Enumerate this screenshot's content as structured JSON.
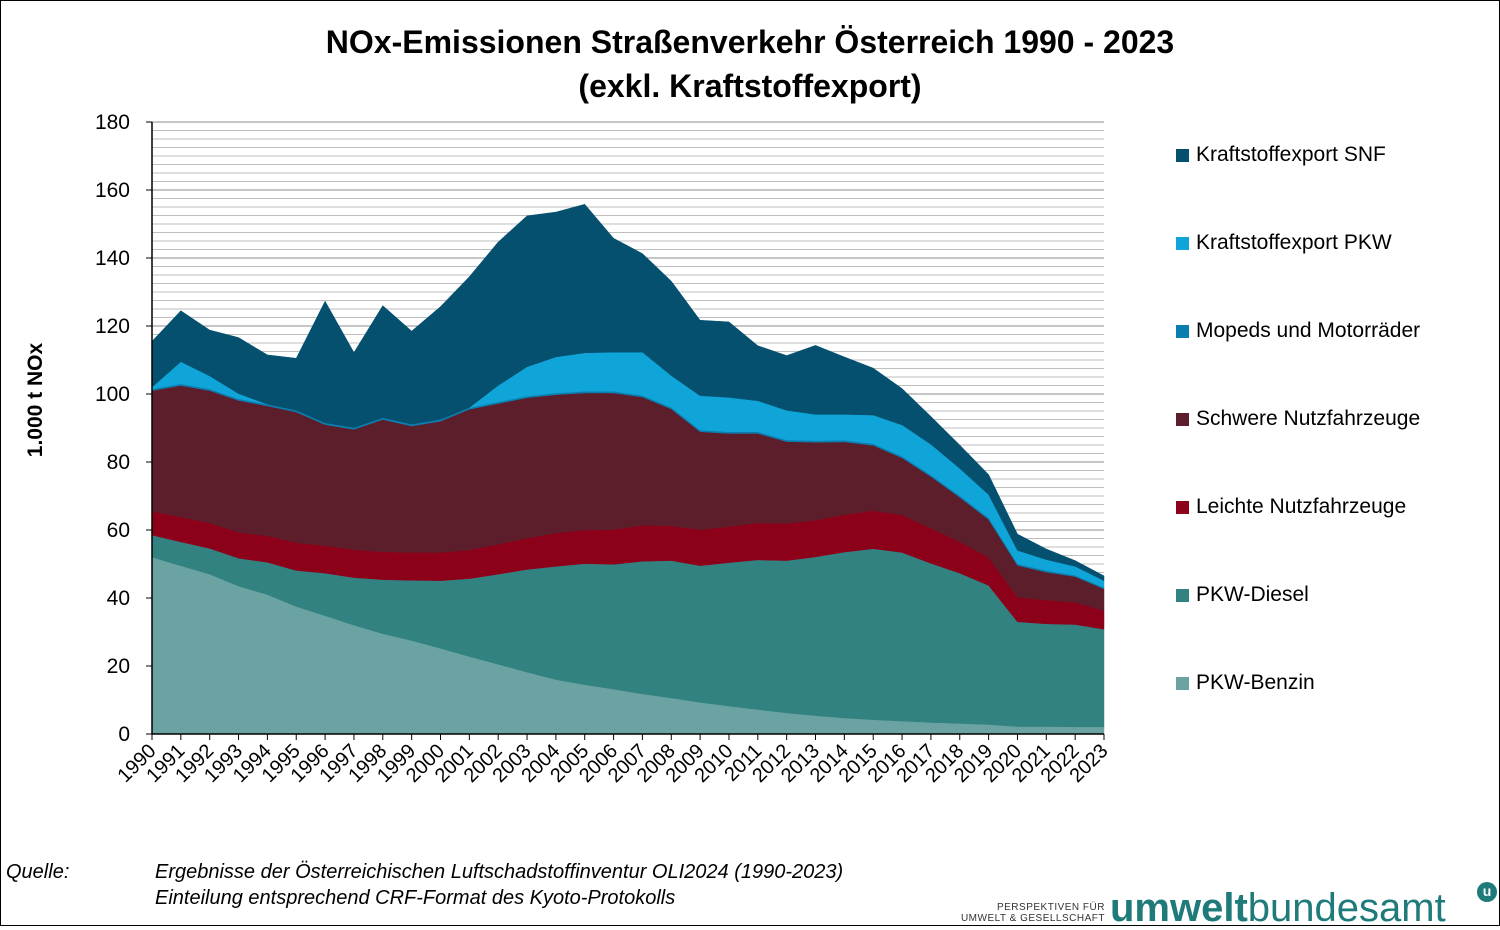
{
  "title": {
    "line1": "NOx-Emissionen Straßenverkehr Österreich 1990 - 2023",
    "line2": "(exkl. Kraftstoffexport)"
  },
  "chart_data": {
    "type": "area",
    "stacked": true,
    "title": "NOx-Emissionen Straßenverkehr Österreich 1990 - 2023 (exkl. Kraftstoffexport)",
    "xlabel": "",
    "ylabel": "1.000 t NOx",
    "ylim": [
      0,
      180
    ],
    "y_ticks": [
      0,
      20,
      40,
      60,
      80,
      100,
      120,
      140,
      160,
      180
    ],
    "grid": true,
    "legend_position": "right",
    "x": [
      "1990",
      "1991",
      "1992",
      "1993",
      "1994",
      "1995",
      "1996",
      "1997",
      "1998",
      "1999",
      "2000",
      "2001",
      "2002",
      "2003",
      "2004",
      "2005",
      "2006",
      "2007",
      "2008",
      "2009",
      "2010",
      "2011",
      "2012",
      "2013",
      "2014",
      "2015",
      "2016",
      "2017",
      "2018",
      "2019",
      "2020",
      "2021",
      "2022",
      "2023"
    ],
    "series": [
      {
        "name": "PKW-Benzin",
        "color": "#6aa3a1",
        "values": [
          52,
          49.5,
          47,
          43.5,
          41,
          37.5,
          34.8,
          32,
          29.5,
          27.5,
          25.2,
          22.8,
          20.5,
          18.2,
          16,
          14.5,
          13.2,
          11.8,
          10.6,
          9.3,
          8.2,
          7.2,
          6.2,
          5.4,
          4.7,
          4.2,
          3.8,
          3.4,
          3.1,
          2.8,
          2.2,
          2.2,
          2.1,
          2.1
        ]
      },
      {
        "name": "PKW-Diesel",
        "color": "#328282",
        "values": [
          6.5,
          7,
          7.6,
          8.2,
          9.5,
          10.6,
          12.5,
          14,
          15.9,
          17.7,
          19.9,
          22.9,
          26.5,
          30.2,
          33.3,
          35.6,
          36.7,
          39,
          40.4,
          40.2,
          42.2,
          44,
          44.8,
          46.7,
          48.8,
          50.3,
          49.6,
          46.8,
          44.2,
          40.9,
          30.8,
          30.2,
          30.1,
          28.7
        ]
      },
      {
        "name": "Leichte Nutzfahrzeuge",
        "color": "#8d0019",
        "values": [
          7,
          7.3,
          7.5,
          7.6,
          7.8,
          8.2,
          8.1,
          8.2,
          8.2,
          8.2,
          8.3,
          8.4,
          8.8,
          9.2,
          9.8,
          9.9,
          10.2,
          10.6,
          10.2,
          10.6,
          10.6,
          10.9,
          10.9,
          10.8,
          11,
          11.2,
          11,
          10.3,
          9.2,
          8.2,
          7.2,
          7,
          6.5,
          5.5
        ]
      },
      {
        "name": "Schwere Nutzfahrzeuge",
        "color": "#5d1e2b",
        "values": [
          35.5,
          38.7,
          38.9,
          38.8,
          38.2,
          38.4,
          35.6,
          35.4,
          38.9,
          37.2,
          38.6,
          41.4,
          41.4,
          41.3,
          40.7,
          40.3,
          40.2,
          37.7,
          34.4,
          28.8,
          27.4,
          26.3,
          24.1,
          22.9,
          21.4,
          19.2,
          16.8,
          15.2,
          13.1,
          11.2,
          9.4,
          8.2,
          7.6,
          6.4
        ]
      },
      {
        "name": "Mopeds und Motorräder",
        "color": "#0b7eb0",
        "values": [
          0.5,
          0.5,
          0.5,
          0.5,
          0.5,
          0.5,
          0.5,
          0.5,
          0.5,
          0.5,
          0.5,
          0.5,
          0.5,
          0.5,
          0.5,
          0.5,
          0.5,
          0.5,
          0.5,
          0.5,
          0.5,
          0.5,
          0.5,
          0.5,
          0.5,
          0.5,
          0.5,
          0.5,
          0.5,
          0.5,
          0.5,
          0.5,
          0.4,
          0.4
        ]
      },
      {
        "name": "Kraftstoffexport PKW",
        "color": "#0fa5d8",
        "values": [
          0.5,
          6.5,
          3.8,
          1.5,
          0,
          0,
          0,
          0,
          0,
          0,
          0,
          0,
          4.8,
          8.6,
          10.6,
          11.3,
          11.5,
          12.7,
          9.3,
          10.1,
          10.1,
          9.1,
          8.7,
          7.7,
          7.6,
          8.4,
          9.2,
          9,
          8,
          6.8,
          3.9,
          3.2,
          2.6,
          2
        ]
      },
      {
        "name": "Kraftstoffexport SNF",
        "color": "#05506f",
        "values": [
          13.5,
          15,
          13.5,
          16.5,
          14.5,
          15.3,
          35.8,
          22.1,
          33,
          27.4,
          33.2,
          38.5,
          42.2,
          44.4,
          42.6,
          43.7,
          33.5,
          29,
          27.8,
          22.2,
          22.2,
          16.2,
          16.1,
          20.3,
          16.9,
          13.8,
          10.7,
          8.2,
          6.9,
          5.9,
          4.8,
          3.1,
          1.7,
          1.4
        ]
      }
    ]
  },
  "legend_order": [
    6,
    5,
    4,
    3,
    2,
    1,
    0
  ],
  "source": {
    "label": "Quelle:",
    "line1": "Ergebnisse der Österreichischen Luftschadstoffinventur OLI2024 (1990-2023)",
    "line2": "Einteilung entsprechend CRF-Format des Kyoto-Protokolls"
  },
  "logo": {
    "tagline1": "PERSPEKTIVEN FÜR",
    "tagline2": "UMWELT & GESELLSCHAFT",
    "word_bold": "umwelt",
    "word_light": "bundesamt",
    "mark": "u"
  }
}
